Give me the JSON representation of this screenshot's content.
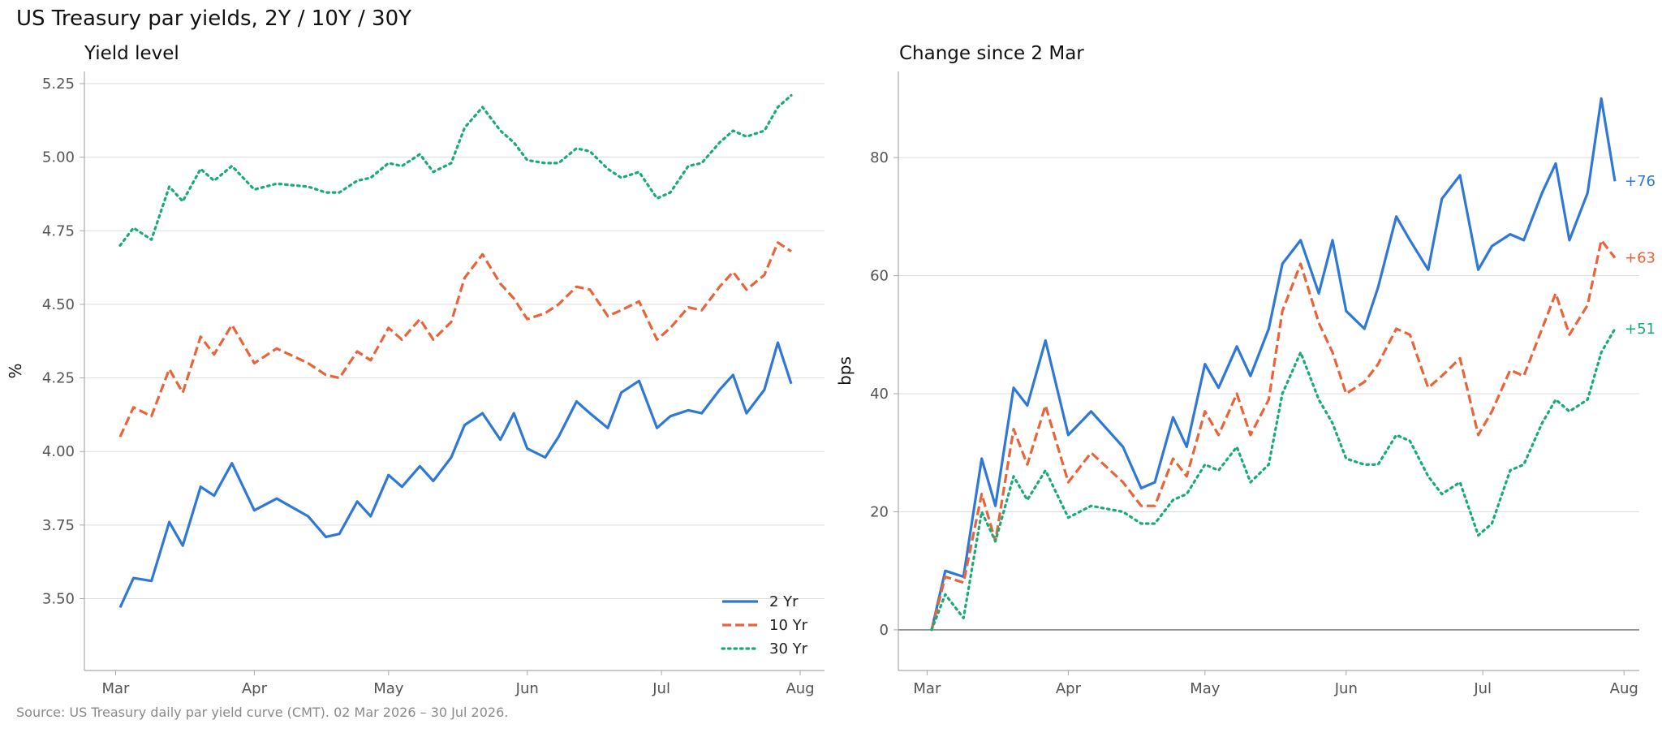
{
  "title": "US Treasury par yields, 2Y / 10Y / 30Y",
  "source": "Source: US Treasury daily par yield curve (CMT). 02 Mar 2026 – 30 Jul 2026.",
  "colors": {
    "2 Yr": "#2f78d8",
    "10 Yr": "#e8643a",
    "30 Yr": "#1aaa78",
    "grid": "#dddddd",
    "axis": "#aaaaaa",
    "zero": "#888888"
  },
  "chart_data": [
    {
      "type": "line",
      "title": "Yield level",
      "xlabel": "",
      "ylabel": "%",
      "ylim": [
        3.38,
        5.25
      ],
      "yticks": [
        "3.50",
        "3.75",
        "4.00",
        "4.25",
        "4.50",
        "4.75",
        "5.00",
        "5.25"
      ],
      "xticks": [
        "Mar",
        "Apr",
        "May",
        "Jun",
        "Jul",
        "Aug"
      ],
      "xrange": [
        "2026-03-02",
        "2026-07-30"
      ],
      "grid": "horizontal",
      "legend": "bottom-right",
      "series": [
        {
          "name": "2 Yr",
          "style": "solid",
          "x": [
            "2026-03-02",
            "2026-03-05",
            "2026-03-09",
            "2026-03-13",
            "2026-03-16",
            "2026-03-20",
            "2026-03-23",
            "2026-03-27",
            "2026-04-01",
            "2026-04-06",
            "2026-04-13",
            "2026-04-17",
            "2026-04-20",
            "2026-04-24",
            "2026-04-27",
            "2026-05-01",
            "2026-05-04",
            "2026-05-08",
            "2026-05-11",
            "2026-05-15",
            "2026-05-18",
            "2026-05-22",
            "2026-05-26",
            "2026-05-29",
            "2026-06-01",
            "2026-06-05",
            "2026-06-08",
            "2026-06-12",
            "2026-06-15",
            "2026-06-19",
            "2026-06-22",
            "2026-06-26",
            "2026-06-30",
            "2026-07-03",
            "2026-07-07",
            "2026-07-10",
            "2026-07-14",
            "2026-07-17",
            "2026-07-20",
            "2026-07-24",
            "2026-07-27",
            "2026-07-30"
          ],
          "values": [
            3.47,
            3.57,
            3.56,
            3.76,
            3.68,
            3.88,
            3.85,
            3.96,
            3.8,
            3.84,
            3.78,
            3.71,
            3.72,
            3.83,
            3.78,
            3.92,
            3.88,
            3.95,
            3.9,
            3.98,
            4.09,
            4.13,
            4.04,
            4.13,
            4.01,
            3.98,
            4.05,
            4.17,
            4.13,
            4.08,
            4.2,
            4.24,
            4.08,
            4.12,
            4.14,
            4.13,
            4.21,
            4.26,
            4.13,
            4.21,
            4.37,
            4.23
          ]
        },
        {
          "name": "10 Yr",
          "style": "dashed",
          "x": [
            "2026-03-02",
            "2026-03-05",
            "2026-03-09",
            "2026-03-13",
            "2026-03-16",
            "2026-03-20",
            "2026-03-23",
            "2026-03-27",
            "2026-04-01",
            "2026-04-06",
            "2026-04-13",
            "2026-04-17",
            "2026-04-20",
            "2026-04-24",
            "2026-04-27",
            "2026-05-01",
            "2026-05-04",
            "2026-05-08",
            "2026-05-11",
            "2026-05-15",
            "2026-05-18",
            "2026-05-22",
            "2026-05-26",
            "2026-05-29",
            "2026-06-01",
            "2026-06-05",
            "2026-06-08",
            "2026-06-12",
            "2026-06-15",
            "2026-06-19",
            "2026-06-22",
            "2026-06-26",
            "2026-06-30",
            "2026-07-03",
            "2026-07-07",
            "2026-07-10",
            "2026-07-14",
            "2026-07-17",
            "2026-07-20",
            "2026-07-24",
            "2026-07-27",
            "2026-07-30"
          ],
          "values": [
            4.05,
            4.15,
            4.12,
            4.28,
            4.2,
            4.39,
            4.33,
            4.43,
            4.3,
            4.35,
            4.3,
            4.26,
            4.25,
            4.34,
            4.31,
            4.42,
            4.38,
            4.45,
            4.38,
            4.44,
            4.59,
            4.67,
            4.57,
            4.52,
            4.45,
            4.47,
            4.5,
            4.56,
            4.55,
            4.46,
            4.48,
            4.51,
            4.38,
            4.42,
            4.49,
            4.48,
            4.56,
            4.61,
            4.55,
            4.6,
            4.71,
            4.68
          ]
        },
        {
          "name": "30 Yr",
          "style": "dotted",
          "x": [
            "2026-03-02",
            "2026-03-05",
            "2026-03-09",
            "2026-03-13",
            "2026-03-16",
            "2026-03-20",
            "2026-03-23",
            "2026-03-27",
            "2026-04-01",
            "2026-04-06",
            "2026-04-13",
            "2026-04-17",
            "2026-04-20",
            "2026-04-24",
            "2026-04-27",
            "2026-05-01",
            "2026-05-04",
            "2026-05-08",
            "2026-05-11",
            "2026-05-15",
            "2026-05-18",
            "2026-05-22",
            "2026-05-26",
            "2026-05-29",
            "2026-06-01",
            "2026-06-05",
            "2026-06-08",
            "2026-06-12",
            "2026-06-15",
            "2026-06-19",
            "2026-06-22",
            "2026-06-26",
            "2026-06-30",
            "2026-07-03",
            "2026-07-07",
            "2026-07-10",
            "2026-07-14",
            "2026-07-17",
            "2026-07-20",
            "2026-07-24",
            "2026-07-27",
            "2026-07-30"
          ],
          "values": [
            4.7,
            4.76,
            4.72,
            4.9,
            4.85,
            4.96,
            4.92,
            4.97,
            4.89,
            4.91,
            4.9,
            4.88,
            4.88,
            4.92,
            4.93,
            4.98,
            4.97,
            5.01,
            4.95,
            4.98,
            5.1,
            5.17,
            5.09,
            5.05,
            4.99,
            4.98,
            4.98,
            5.03,
            5.02,
            4.96,
            4.93,
            4.95,
            4.86,
            4.88,
            4.97,
            4.98,
            5.05,
            5.09,
            5.07,
            5.09,
            5.17,
            5.21
          ]
        }
      ]
    },
    {
      "type": "line",
      "title": "Change since 2 Mar",
      "xlabel": "",
      "ylabel": "bps",
      "ylim": [
        -4,
        95
      ],
      "yticks": [
        "0",
        "20",
        "40",
        "60",
        "80"
      ],
      "xticks": [
        "Mar",
        "Apr",
        "May",
        "Jun",
        "Jul",
        "Aug"
      ],
      "xrange": [
        "2026-03-02",
        "2026-07-30"
      ],
      "grid": "horizontal",
      "zero_line": true,
      "series": [
        {
          "name": "2 Yr",
          "style": "solid",
          "end_label": "+76",
          "x": [
            "2026-03-02",
            "2026-03-05",
            "2026-03-09",
            "2026-03-13",
            "2026-03-16",
            "2026-03-20",
            "2026-03-23",
            "2026-03-27",
            "2026-04-01",
            "2026-04-06",
            "2026-04-13",
            "2026-04-17",
            "2026-04-20",
            "2026-04-24",
            "2026-04-27",
            "2026-05-01",
            "2026-05-04",
            "2026-05-08",
            "2026-05-11",
            "2026-05-15",
            "2026-05-18",
            "2026-05-22",
            "2026-05-26",
            "2026-05-29",
            "2026-06-01",
            "2026-06-05",
            "2026-06-08",
            "2026-06-12",
            "2026-06-15",
            "2026-06-19",
            "2026-06-22",
            "2026-06-26",
            "2026-06-30",
            "2026-07-03",
            "2026-07-07",
            "2026-07-10",
            "2026-07-14",
            "2026-07-17",
            "2026-07-20",
            "2026-07-24",
            "2026-07-27",
            "2026-07-30"
          ],
          "values": [
            0,
            10,
            9,
            29,
            21,
            41,
            38,
            49,
            33,
            37,
            31,
            24,
            25,
            36,
            31,
            45,
            41,
            48,
            43,
            51,
            62,
            66,
            57,
            66,
            54,
            51,
            58,
            70,
            66,
            61,
            73,
            77,
            61,
            65,
            67,
            66,
            74,
            79,
            66,
            74,
            90,
            76
          ]
        },
        {
          "name": "10 Yr",
          "style": "dashed",
          "end_label": "+63",
          "x": [
            "2026-03-02",
            "2026-03-05",
            "2026-03-09",
            "2026-03-13",
            "2026-03-16",
            "2026-03-20",
            "2026-03-23",
            "2026-03-27",
            "2026-04-01",
            "2026-04-06",
            "2026-04-13",
            "2026-04-17",
            "2026-04-20",
            "2026-04-24",
            "2026-04-27",
            "2026-05-01",
            "2026-05-04",
            "2026-05-08",
            "2026-05-11",
            "2026-05-15",
            "2026-05-18",
            "2026-05-22",
            "2026-05-26",
            "2026-05-29",
            "2026-06-01",
            "2026-06-05",
            "2026-06-08",
            "2026-06-12",
            "2026-06-15",
            "2026-06-19",
            "2026-06-22",
            "2026-06-26",
            "2026-06-30",
            "2026-07-03",
            "2026-07-07",
            "2026-07-10",
            "2026-07-14",
            "2026-07-17",
            "2026-07-20",
            "2026-07-24",
            "2026-07-27",
            "2026-07-30"
          ],
          "values": [
            0,
            9,
            8,
            23,
            15,
            34,
            28,
            38,
            25,
            30,
            25,
            21,
            21,
            29,
            26,
            37,
            33,
            40,
            33,
            39,
            54,
            62,
            52,
            47,
            40,
            42,
            45,
            51,
            50,
            41,
            43,
            46,
            33,
            37,
            44,
            43,
            51,
            57,
            50,
            55,
            66,
            63
          ]
        },
        {
          "name": "30 Yr",
          "style": "dotted",
          "end_label": "+51",
          "x": [
            "2026-03-02",
            "2026-03-05",
            "2026-03-09",
            "2026-03-13",
            "2026-03-16",
            "2026-03-20",
            "2026-03-23",
            "2026-03-27",
            "2026-04-01",
            "2026-04-06",
            "2026-04-13",
            "2026-04-17",
            "2026-04-20",
            "2026-04-24",
            "2026-04-27",
            "2026-05-01",
            "2026-05-04",
            "2026-05-08",
            "2026-05-11",
            "2026-05-15",
            "2026-05-18",
            "2026-05-22",
            "2026-05-26",
            "2026-05-29",
            "2026-06-01",
            "2026-06-05",
            "2026-06-08",
            "2026-06-12",
            "2026-06-15",
            "2026-06-19",
            "2026-06-22",
            "2026-06-26",
            "2026-06-30",
            "2026-07-03",
            "2026-07-07",
            "2026-07-10",
            "2026-07-14",
            "2026-07-17",
            "2026-07-20",
            "2026-07-24",
            "2026-07-27",
            "2026-07-30"
          ],
          "values": [
            0,
            6,
            2,
            20,
            15,
            26,
            22,
            27,
            19,
            21,
            20,
            18,
            18,
            22,
            23,
            28,
            27,
            31,
            25,
            28,
            40,
            47,
            39,
            35,
            29,
            28,
            28,
            33,
            32,
            26,
            23,
            25,
            16,
            18,
            27,
            28,
            35,
            39,
            37,
            39,
            47,
            51
          ]
        }
      ]
    }
  ]
}
